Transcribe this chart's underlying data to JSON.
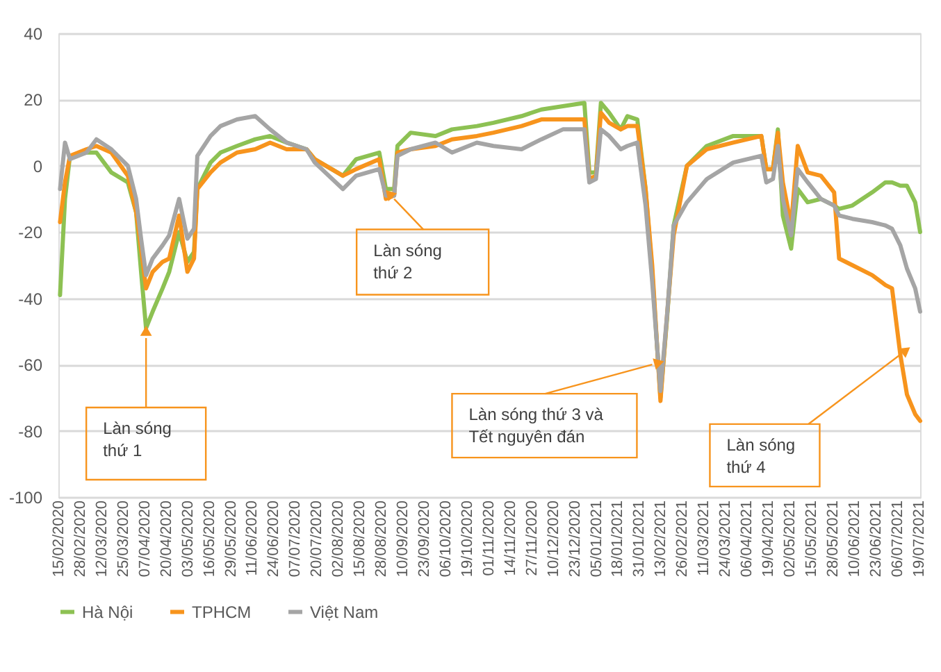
{
  "chart_data": {
    "type": "line",
    "x": [
      "2020-02-16",
      "2020-02-19",
      "2020-02-22",
      "2020-03-03",
      "2020-03-09",
      "2020-03-18",
      "2020-03-28",
      "2020-04-02",
      "2020-04-05",
      "2020-04-08",
      "2020-04-12",
      "2020-04-18",
      "2020-04-22",
      "2020-04-28",
      "2020-05-03",
      "2020-05-07",
      "2020-05-09",
      "2020-05-17",
      "2020-05-23",
      "2020-06-02",
      "2020-06-13",
      "2020-06-22",
      "2020-07-02",
      "2020-07-14",
      "2020-07-19",
      "2020-08-05",
      "2020-08-13",
      "2020-08-27",
      "2020-08-31",
      "2020-09-05",
      "2020-09-07",
      "2020-09-15",
      "2020-09-30",
      "2020-10-10",
      "2020-10-25",
      "2020-11-04",
      "2020-11-21",
      "2020-12-03",
      "2020-12-16",
      "2020-12-29",
      "2021-01-01",
      "2021-01-05",
      "2021-01-08",
      "2021-01-13",
      "2021-01-20",
      "2021-01-24",
      "2021-01-30",
      "2021-02-04",
      "2021-02-08",
      "2021-02-13",
      "2021-02-17",
      "2021-02-21",
      "2021-03-01",
      "2021-03-13",
      "2021-03-29",
      "2021-04-15",
      "2021-04-18",
      "2021-04-22",
      "2021-04-25",
      "2021-04-28",
      "2021-05-03",
      "2021-05-07",
      "2021-05-13",
      "2021-05-21",
      "2021-05-29",
      "2021-06-01",
      "2021-06-09",
      "2021-06-21",
      "2021-06-29",
      "2021-07-03",
      "2021-07-08",
      "2021-07-12",
      "2021-07-17",
      "2021-07-20"
    ],
    "series": [
      {
        "name": "Hà Nội",
        "color": "#8dc153",
        "values": [
          -39,
          -10,
          3,
          4,
          4,
          -2,
          -5,
          -14,
          -32,
          -49,
          -44,
          -37,
          -32,
          -20,
          -29,
          -26,
          -7,
          1,
          4,
          6,
          8,
          9,
          7,
          5,
          2,
          -3,
          2,
          4,
          -7,
          -7,
          6,
          10,
          9,
          11,
          12,
          13,
          15,
          17,
          18,
          19,
          -2,
          -2,
          19,
          16,
          11,
          15,
          14,
          -7,
          -32,
          -70,
          -46,
          -18,
          0,
          6,
          9,
          9,
          -1,
          -1,
          11,
          -15,
          -25,
          -7,
          -11,
          -10,
          -12,
          -13,
          -12,
          -8,
          -5,
          -5,
          -6,
          -6,
          -11,
          -20
        ]
      },
      {
        "name": "TPHCM",
        "color": "#f7941d",
        "values": [
          -17,
          -5,
          3,
          5,
          6,
          4,
          -3,
          -14,
          -25,
          -37,
          -32,
          -29,
          -28,
          -15,
          -32,
          -28,
          -7,
          -2,
          1,
          4,
          5,
          7,
          5,
          5,
          2,
          -3,
          -1,
          2,
          -10,
          -9,
          4,
          5,
          6,
          8,
          9,
          10,
          12,
          14,
          14,
          14,
          -4,
          -3,
          16,
          13,
          11,
          12,
          12,
          -7,
          -30,
          -71,
          -45,
          -21,
          0,
          5,
          7,
          9,
          -1,
          -1,
          10,
          -5,
          -18,
          6,
          -2,
          -3,
          -8,
          -28,
          -30,
          -33,
          -36,
          -37,
          -57,
          -69,
          -75,
          -77
        ]
      },
      {
        "name": "Việt Nam",
        "color": "#a5a5a5",
        "values": [
          -7,
          7,
          2,
          4,
          8,
          5,
          0,
          -10,
          -22,
          -33,
          -28,
          -24,
          -21,
          -10,
          -22,
          -19,
          3,
          9,
          12,
          14,
          15,
          11,
          7,
          5,
          1,
          -7,
          -3,
          -1,
          -9,
          -9,
          3,
          5,
          7,
          4,
          7,
          6,
          5,
          8,
          11,
          11,
          -5,
          -4,
          11,
          9,
          5,
          6,
          7,
          -12,
          -35,
          -68,
          -45,
          -18,
          -11,
          -4,
          1,
          3,
          -5,
          -4,
          6,
          -10,
          -21,
          -1,
          -5,
          -10,
          -12,
          -15,
          -16,
          -17,
          -18,
          -19,
          -24,
          -31,
          -37,
          -44
        ]
      }
    ],
    "xlim": [
      "2020-02-15",
      "2021-07-20"
    ],
    "xticks": [
      {
        "value": "2020-02-15",
        "label": "15/02/2020"
      },
      {
        "value": "2020-02-28",
        "label": "28/02/2020"
      },
      {
        "value": "2020-03-12",
        "label": "12/03/2020"
      },
      {
        "value": "2020-03-25",
        "label": "25/03/2020"
      },
      {
        "value": "2020-04-07",
        "label": "07/04/2020"
      },
      {
        "value": "2020-04-20",
        "label": "20/04/2020"
      },
      {
        "value": "2020-05-03",
        "label": "03/05/2020"
      },
      {
        "value": "2020-05-16",
        "label": "16/05/2020"
      },
      {
        "value": "2020-05-29",
        "label": "29/05/2020"
      },
      {
        "value": "2020-06-11",
        "label": "11/06/2020"
      },
      {
        "value": "2020-06-24",
        "label": "24/06/2020"
      },
      {
        "value": "2020-07-07",
        "label": "07/07/2020"
      },
      {
        "value": "2020-07-20",
        "label": "20/07/2020"
      },
      {
        "value": "2020-08-02",
        "label": "02/08/2020"
      },
      {
        "value": "2020-08-15",
        "label": "15/08/2020"
      },
      {
        "value": "2020-08-28",
        "label": "28/08/2020"
      },
      {
        "value": "2020-09-10",
        "label": "10/09/2020"
      },
      {
        "value": "2020-09-23",
        "label": "23/09/2020"
      },
      {
        "value": "2020-10-06",
        "label": "06/10/2020"
      },
      {
        "value": "2020-10-19",
        "label": "19/10/2020"
      },
      {
        "value": "2020-11-01",
        "label": "01/11/2020"
      },
      {
        "value": "2020-11-14",
        "label": "14/11/2020"
      },
      {
        "value": "2020-11-27",
        "label": "27/11/2020"
      },
      {
        "value": "2020-12-10",
        "label": "10/12/2020"
      },
      {
        "value": "2020-12-23",
        "label": "23/12/2020"
      },
      {
        "value": "2021-01-05",
        "label": "05/01/2021"
      },
      {
        "value": "2021-01-18",
        "label": "18/01/2021"
      },
      {
        "value": "2021-01-31",
        "label": "31/01/2021"
      },
      {
        "value": "2021-02-13",
        "label": "13/02/2021"
      },
      {
        "value": "2021-02-26",
        "label": "26/02/2021"
      },
      {
        "value": "2021-03-11",
        "label": "11/03/2021"
      },
      {
        "value": "2021-03-24",
        "label": "24/03/2021"
      },
      {
        "value": "2021-04-06",
        "label": "06/04/2021"
      },
      {
        "value": "2021-04-19",
        "label": "19/04/2021"
      },
      {
        "value": "2021-05-02",
        "label": "02/05/2021"
      },
      {
        "value": "2021-05-15",
        "label": "15/05/2021"
      },
      {
        "value": "2021-05-28",
        "label": "28/05/2021"
      },
      {
        "value": "2021-06-10",
        "label": "10/06/2021"
      },
      {
        "value": "2021-06-23",
        "label": "23/06/2021"
      },
      {
        "value": "2021-07-06",
        "label": "06/07/2021"
      },
      {
        "value": "2021-07-19",
        "label": "19/07/2021"
      }
    ],
    "ylim": [
      -100,
      40
    ],
    "yticks": [
      -100,
      -80,
      -60,
      -40,
      -20,
      0,
      20,
      40
    ],
    "grid": "y",
    "legend": "bottom",
    "marker": "none",
    "line_style": "solid",
    "annotations": [
      {
        "text": "Làn sóng\nthứ 1",
        "x": "2020-04-08",
        "y": -52
      },
      {
        "text": "Làn sóng\nthứ 2",
        "x": "2020-09-05",
        "y": -10
      },
      {
        "text": "Làn sóng thứ 3 và\nTết nguyên đán",
        "x": "2021-02-08",
        "y": -60
      },
      {
        "text": "Làn sóng\nthứ 4",
        "x": "2021-07-08",
        "y": -57
      }
    ]
  }
}
